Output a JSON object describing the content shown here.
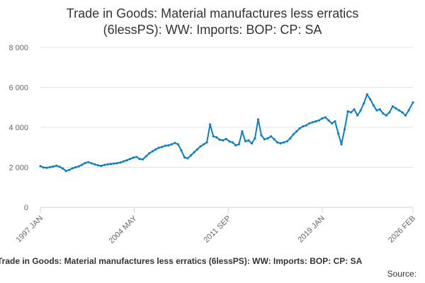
{
  "colors": {
    "series": "#0f7dc2",
    "grid": "#e6e6e6",
    "axis": "#ccd6eb",
    "text": "#333333",
    "tick_text": "#666666"
  },
  "chart_data": {
    "type": "line",
    "title": "Trade in Goods: Material manufactures less erratics (6lessPS): WW: Imports: BOP: CP: SA",
    "title_lines": [
      "Trade in Goods: Material manufactures less erratics",
      "(6lessPS): WW: Imports: BOP: CP: SA"
    ],
    "xlabel": "",
    "ylabel": "",
    "ylim": [
      0,
      8000
    ],
    "yticks": [
      0,
      2000,
      4000,
      6000,
      8000
    ],
    "ytick_labels": [
      "0",
      "2 000",
      "4 000",
      "6 000",
      "8 000"
    ],
    "xlim": [
      1997.0,
      2026.083
    ],
    "xticks": [
      1997.0,
      2004.33,
      2011.67,
      2019.0,
      2026.083
    ],
    "xtick_labels": [
      "1997 JAN",
      "2004 MAY",
      "2011 SEP",
      "2019 JAN",
      "2026 FEB"
    ],
    "grid": true,
    "legend": "none",
    "series": [
      {
        "name": "Trade in Goods: Material manufactures less erratics (6lessPS): WW: Imports: BOP: CP: SA",
        "x": [
          1997.0,
          1997.25,
          1997.5,
          1997.75,
          1998.0,
          1998.25,
          1998.5,
          1998.75,
          1999.0,
          1999.25,
          1999.5,
          1999.75,
          2000.0,
          2000.25,
          2000.5,
          2000.75,
          2001.0,
          2001.25,
          2001.5,
          2001.75,
          2002.0,
          2002.25,
          2002.5,
          2002.75,
          2003.0,
          2003.25,
          2003.5,
          2003.75,
          2004.0,
          2004.25,
          2004.5,
          2004.75,
          2005.0,
          2005.25,
          2005.5,
          2005.75,
          2006.0,
          2006.25,
          2006.5,
          2006.75,
          2007.0,
          2007.25,
          2007.5,
          2007.75,
          2008.0,
          2008.25,
          2008.5,
          2008.75,
          2009.0,
          2009.25,
          2009.5,
          2009.75,
          2010.0,
          2010.25,
          2010.5,
          2010.75,
          2011.0,
          2011.25,
          2011.5,
          2011.75,
          2012.0,
          2012.25,
          2012.5,
          2012.75,
          2013.0,
          2013.25,
          2013.5,
          2013.75,
          2014.0,
          2014.25,
          2014.5,
          2014.75,
          2015.0,
          2015.25,
          2015.5,
          2015.75,
          2016.0,
          2016.25,
          2016.5,
          2016.75,
          2017.0,
          2017.25,
          2017.5,
          2017.75,
          2018.0,
          2018.25,
          2018.5,
          2018.75,
          2019.0,
          2019.25,
          2019.5,
          2019.75,
          2020.0,
          2020.25,
          2020.5,
          2020.75,
          2021.0,
          2021.25,
          2021.5,
          2021.75,
          2022.0,
          2022.25,
          2022.5,
          2022.75,
          2023.0,
          2023.25,
          2023.5,
          2023.75,
          2024.0,
          2024.25,
          2024.5,
          2024.75,
          2025.0,
          2025.25,
          2025.5,
          2025.75,
          2026.083
        ],
        "values": [
          2060,
          1990,
          1980,
          2010,
          2040,
          2080,
          2030,
          1940,
          1820,
          1870,
          1950,
          2000,
          2050,
          2130,
          2220,
          2260,
          2200,
          2150,
          2100,
          2070,
          2120,
          2150,
          2170,
          2190,
          2210,
          2240,
          2300,
          2350,
          2420,
          2480,
          2520,
          2420,
          2400,
          2550,
          2700,
          2800,
          2900,
          2980,
          3020,
          3080,
          3100,
          3150,
          3220,
          3150,
          2850,
          2500,
          2450,
          2600,
          2750,
          2900,
          3050,
          3150,
          3250,
          4150,
          3550,
          3500,
          3380,
          3350,
          3420,
          3300,
          3250,
          3100,
          3150,
          3800,
          3300,
          3350,
          3200,
          3450,
          4400,
          3600,
          3400,
          3450,
          3550,
          3400,
          3250,
          3200,
          3250,
          3300,
          3450,
          3650,
          3800,
          3950,
          4050,
          4100,
          4200,
          4250,
          4300,
          4350,
          4450,
          4500,
          4350,
          4200,
          4300,
          3700,
          3150,
          3900,
          4800,
          4750,
          4900,
          4600,
          4850,
          5200,
          5650,
          5400,
          5100,
          4850,
          4900,
          4700,
          4600,
          4750,
          5050,
          4950,
          4850,
          4750,
          4600,
          4850,
          5250
        ]
      }
    ]
  },
  "footer": {
    "caption": "Trade in Goods: Material manufactures less erratics (6lessPS): WW: Imports: BOP: CP: SA",
    "source": "Source:"
  }
}
